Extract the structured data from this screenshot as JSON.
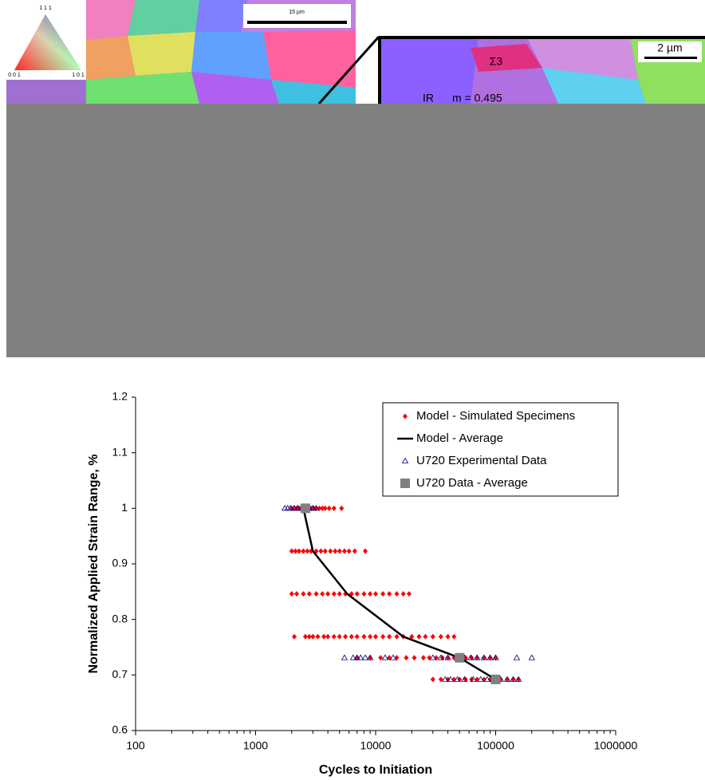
{
  "micrograph": {
    "triangle_labels": [
      "1 1 1",
      "0 0 1",
      "1 0 1"
    ],
    "scale_bar_left": "15 µm",
    "scale_bar_right": "2 µm",
    "labels": [
      "Σ3",
      "IR",
      "m = 0.495"
    ]
  },
  "chart_data": {
    "type": "scatter",
    "xlabel": "Cycles to Initiation",
    "ylabel": "Normalized Applied Strain Range, %",
    "xlim": [
      100,
      1000000
    ],
    "xticks": [
      100,
      1000,
      10000,
      100000,
      1000000
    ],
    "xlog": true,
    "ylim": [
      0.6,
      1.2
    ],
    "yticks": [
      0.6,
      0.7,
      0.8,
      0.9,
      1,
      1.1,
      1.2
    ],
    "legend": "upper right",
    "series": [
      {
        "name": "Model - Simulated Specimens",
        "marker": "diamond",
        "color": "#ff0000",
        "x": [
          2000,
          2100,
          2200,
          2300,
          2450,
          2600,
          2750,
          2900,
          3050,
          3200,
          3400,
          3600,
          3800,
          4100,
          4500,
          5200,
          2000,
          2150,
          2300,
          2500,
          2700,
          2900,
          3200,
          3500,
          3800,
          4200,
          4600,
          5000,
          5500,
          6000,
          6700,
          8200,
          2000,
          2200,
          2500,
          2800,
          3200,
          3600,
          4000,
          4500,
          5000,
          5600,
          6300,
          7000,
          8000,
          9000,
          10000,
          11500,
          13000,
          15000,
          17000,
          19000,
          2100,
          2600,
          2800,
          3000,
          3300,
          3700,
          4000,
          4500,
          5000,
          5600,
          6300,
          7000,
          8000,
          9000,
          10000,
          11500,
          13000,
          15000,
          17000,
          20000,
          23000,
          26000,
          30000,
          35000,
          40000,
          45000,
          7000,
          9000,
          11000,
          13000,
          15000,
          18000,
          21000,
          25000,
          28000,
          32000,
          36000,
          40000,
          45000,
          50000,
          56000,
          63000,
          70000,
          80000,
          90000,
          100000,
          30000,
          35000,
          40000,
          45000,
          50000,
          56000,
          63000,
          70000,
          80000,
          90000,
          100000,
          110000,
          125000,
          140000,
          155000
        ],
        "values": [
          1,
          1,
          1,
          1,
          1,
          1,
          1,
          1,
          1,
          1,
          1,
          1,
          1,
          1,
          1,
          1,
          0.923,
          0.923,
          0.923,
          0.923,
          0.923,
          0.923,
          0.923,
          0.923,
          0.923,
          0.923,
          0.923,
          0.923,
          0.923,
          0.923,
          0.923,
          0.923,
          0.846,
          0.846,
          0.846,
          0.846,
          0.846,
          0.846,
          0.846,
          0.846,
          0.846,
          0.846,
          0.846,
          0.846,
          0.846,
          0.846,
          0.846,
          0.846,
          0.846,
          0.846,
          0.846,
          0.846,
          0.769,
          0.769,
          0.769,
          0.769,
          0.769,
          0.769,
          0.769,
          0.769,
          0.769,
          0.769,
          0.769,
          0.769,
          0.769,
          0.769,
          0.769,
          0.769,
          0.769,
          0.769,
          0.769,
          0.769,
          0.769,
          0.769,
          0.769,
          0.769,
          0.769,
          0.769,
          0.731,
          0.731,
          0.731,
          0.731,
          0.731,
          0.731,
          0.731,
          0.731,
          0.731,
          0.731,
          0.731,
          0.731,
          0.731,
          0.731,
          0.731,
          0.731,
          0.731,
          0.731,
          0.731,
          0.731,
          0.692,
          0.692,
          0.692,
          0.692,
          0.692,
          0.692,
          0.692,
          0.692,
          0.692,
          0.692,
          0.692,
          0.692,
          0.692,
          0.692,
          0.692
        ]
      },
      {
        "name": "Model - Average",
        "marker": "line",
        "color": "#000000",
        "x": [
          2500,
          3000,
          5800,
          17000,
          50000,
          100000
        ],
        "values": [
          1,
          0.923,
          0.846,
          0.769,
          0.731,
          0.692
        ]
      },
      {
        "name": "U720 Experimental Data",
        "marker": "triangle",
        "color": "#000080",
        "x": [
          1750,
          1850,
          1950,
          2100,
          2250,
          2400,
          2600,
          2800,
          3000,
          3200,
          5500,
          6500,
          7000,
          7500,
          8200,
          9000,
          12000,
          14000,
          30000,
          35000,
          40000,
          48000,
          55000,
          62000,
          70000,
          80000,
          90000,
          100000,
          150000,
          200000,
          38000,
          42000,
          48000,
          55000,
          65000,
          75000,
          85000,
          95000,
          110000,
          125000,
          140000,
          155000
        ],
        "values": [
          1,
          1,
          1,
          1,
          1,
          1,
          1,
          1,
          1,
          1,
          0.731,
          0.731,
          0.731,
          0.731,
          0.731,
          0.731,
          0.731,
          0.731,
          0.731,
          0.731,
          0.731,
          0.731,
          0.731,
          0.731,
          0.731,
          0.731,
          0.731,
          0.731,
          0.731,
          0.731,
          0.692,
          0.692,
          0.692,
          0.692,
          0.692,
          0.692,
          0.692,
          0.692,
          0.692,
          0.692,
          0.692,
          0.692
        ]
      },
      {
        "name": "U720 Data - Average",
        "marker": "square",
        "color": "#808080",
        "x": [
          2600,
          50000,
          100000
        ],
        "values": [
          1,
          0.731,
          0.692
        ]
      }
    ]
  }
}
